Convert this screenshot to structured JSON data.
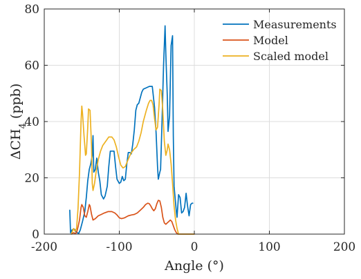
{
  "chart_data": {
    "type": "line",
    "title": "",
    "xlabel": "Angle (°)",
    "ylabel": "ΔCH4 (ppb)",
    "ylabel_base": "ΔCH",
    "ylabel_sub": "4",
    "ylabel_unit": " (ppb)",
    "xlim": [
      -200,
      200
    ],
    "ylim": [
      0,
      80
    ],
    "xticks": [
      -200,
      -100,
      0,
      100,
      200
    ],
    "yticks": [
      0,
      20,
      40,
      60,
      80
    ],
    "xtick_labels": [
      "-200",
      "-100",
      "0",
      "100",
      "200"
    ],
    "ytick_labels": [
      "0",
      "20",
      "40",
      "60",
      "80"
    ],
    "grid": true,
    "legend_position": "top-right",
    "series": [
      {
        "name": "Measurements",
        "color": "#0072BD",
        "points": [
          [
            -166,
            8.5
          ],
          [
            -165,
            0.5
          ],
          [
            -163,
            1.5
          ],
          [
            -160,
            1.8
          ],
          [
            -157,
            0.6
          ],
          [
            -154,
            0.3
          ],
          [
            -152,
            1.5
          ],
          [
            -149,
            4.5
          ],
          [
            -146,
            8
          ],
          [
            -144,
            13
          ],
          [
            -142,
            19
          ],
          [
            -140,
            23
          ],
          [
            -138,
            25
          ],
          [
            -136,
            28
          ],
          [
            -135,
            35
          ],
          [
            -134,
            22
          ],
          [
            -132,
            23
          ],
          [
            -130,
            27
          ],
          [
            -128,
            22
          ],
          [
            -126,
            19
          ],
          [
            -124,
            14
          ],
          [
            -121,
            12.5
          ],
          [
            -119,
            13.5
          ],
          [
            -116,
            17
          ],
          [
            -114,
            24
          ],
          [
            -112,
            29.5
          ],
          [
            -109,
            29.5
          ],
          [
            -107,
            29.5
          ],
          [
            -105,
            24
          ],
          [
            -103,
            19.5
          ],
          [
            -100,
            18
          ],
          [
            -98,
            18.5
          ],
          [
            -96,
            20.5
          ],
          [
            -94,
            19
          ],
          [
            -92,
            19.5
          ],
          [
            -90,
            25
          ],
          [
            -88,
            29
          ],
          [
            -86,
            29
          ],
          [
            -84,
            28.5
          ],
          [
            -82,
            32
          ],
          [
            -80,
            37
          ],
          [
            -78,
            44
          ],
          [
            -76,
            46
          ],
          [
            -74,
            46.5
          ],
          [
            -72,
            48.5
          ],
          [
            -70,
            50.5
          ],
          [
            -68,
            51.5
          ],
          [
            -64,
            52
          ],
          [
            -60,
            52.5
          ],
          [
            -56,
            52.5
          ],
          [
            -53,
            45
          ],
          [
            -51,
            36
          ],
          [
            -49,
            24
          ],
          [
            -48,
            19.5
          ],
          [
            -46,
            22
          ],
          [
            -45,
            23
          ],
          [
            -43,
            40
          ],
          [
            -41,
            60
          ],
          [
            -39,
            74
          ],
          [
            -38,
            64
          ],
          [
            -36,
            49
          ],
          [
            -35,
            36.5
          ],
          [
            -33,
            42
          ],
          [
            -31,
            67
          ],
          [
            -29,
            70.5
          ],
          [
            -28,
            35
          ],
          [
            -27,
            17
          ],
          [
            -26,
            14
          ],
          [
            -25,
            11
          ],
          [
            -24,
            8
          ],
          [
            -23,
            6
          ],
          [
            -21,
            14
          ],
          [
            -19,
            13
          ],
          [
            -17,
            7.5
          ],
          [
            -15,
            8
          ],
          [
            -13,
            9.5
          ],
          [
            -11,
            14.5
          ],
          [
            -9,
            10
          ],
          [
            -7,
            6.5
          ],
          [
            -5,
            10.5
          ],
          [
            -3,
            11
          ],
          [
            -2,
            11
          ]
        ]
      },
      {
        "name": "Model",
        "color": "#D95319",
        "points": [
          [
            -164,
            0
          ],
          [
            -161,
            0.5
          ],
          [
            -159,
            0.3
          ],
          [
            -157,
            0.5
          ],
          [
            -155,
            2.5
          ],
          [
            -153,
            5
          ],
          [
            -151,
            9.5
          ],
          [
            -150,
            10.5
          ],
          [
            -148,
            9.5
          ],
          [
            -146,
            6.5
          ],
          [
            -144,
            6
          ],
          [
            -142,
            8
          ],
          [
            -140,
            10.5
          ],
          [
            -139,
            10
          ],
          [
            -137,
            7
          ],
          [
            -135,
            5
          ],
          [
            -132,
            5.5
          ],
          [
            -128,
            6.5
          ],
          [
            -124,
            7
          ],
          [
            -120,
            7.5
          ],
          [
            -115,
            8
          ],
          [
            -110,
            8
          ],
          [
            -106,
            7.5
          ],
          [
            -103,
            6.8
          ],
          [
            -100,
            5.8
          ],
          [
            -97,
            5.5
          ],
          [
            -93,
            5.8
          ],
          [
            -88,
            6.5
          ],
          [
            -84,
            6.8
          ],
          [
            -80,
            7
          ],
          [
            -76,
            7.5
          ],
          [
            -72,
            8.5
          ],
          [
            -68,
            9.5
          ],
          [
            -65,
            10.5
          ],
          [
            -62,
            11
          ],
          [
            -60,
            10.8
          ],
          [
            -58,
            10
          ],
          [
            -56,
            9
          ],
          [
            -54,
            8.3
          ],
          [
            -52,
            9
          ],
          [
            -50,
            10.8
          ],
          [
            -48,
            12
          ],
          [
            -46,
            11.8
          ],
          [
            -44,
            9.5
          ],
          [
            -42,
            6
          ],
          [
            -40,
            4
          ],
          [
            -38,
            3.5
          ],
          [
            -36,
            4
          ],
          [
            -34,
            4.5
          ],
          [
            -32,
            5
          ],
          [
            -30,
            4.5
          ],
          [
            -28,
            3
          ],
          [
            -26,
            1.5
          ],
          [
            -24,
            0.5
          ],
          [
            -22,
            0
          ],
          [
            -15,
            0
          ],
          [
            -5,
            0
          ],
          [
            0,
            0
          ]
        ]
      },
      {
        "name": "Scaled model",
        "color": "#EDB120",
        "points": [
          [
            -164,
            0
          ],
          [
            -161,
            2
          ],
          [
            -159,
            1
          ],
          [
            -157,
            2
          ],
          [
            -155,
            9
          ],
          [
            -153,
            22
          ],
          [
            -151,
            40
          ],
          [
            -150,
            45.5
          ],
          [
            -149,
            43
          ],
          [
            -147,
            35
          ],
          [
            -145,
            28
          ],
          [
            -144,
            28.5
          ],
          [
            -142,
            38
          ],
          [
            -141,
            44.5
          ],
          [
            -139,
            44
          ],
          [
            -137,
            31
          ],
          [
            -136,
            18
          ],
          [
            -135,
            15.5
          ],
          [
            -133,
            18
          ],
          [
            -131,
            22
          ],
          [
            -128,
            26.5
          ],
          [
            -125,
            29.5
          ],
          [
            -122,
            31.5
          ],
          [
            -118,
            33
          ],
          [
            -114,
            34.5
          ],
          [
            -110,
            34.5
          ],
          [
            -107,
            33.5
          ],
          [
            -104,
            31
          ],
          [
            -101,
            27.5
          ],
          [
            -98,
            24.5
          ],
          [
            -95,
            23.5
          ],
          [
            -92,
            24
          ],
          [
            -89,
            26
          ],
          [
            -85,
            28.5
          ],
          [
            -81,
            30
          ],
          [
            -77,
            31
          ],
          [
            -74,
            33
          ],
          [
            -71,
            36
          ],
          [
            -68,
            40
          ],
          [
            -64,
            44
          ],
          [
            -61,
            46.5
          ],
          [
            -59,
            47.5
          ],
          [
            -57,
            47.5
          ],
          [
            -55,
            46
          ],
          [
            -53,
            41
          ],
          [
            -51,
            37
          ],
          [
            -49,
            38
          ],
          [
            -47,
            46
          ],
          [
            -46,
            51.5
          ],
          [
            -44,
            51
          ],
          [
            -42,
            44
          ],
          [
            -40,
            33
          ],
          [
            -38,
            28
          ],
          [
            -36,
            30
          ],
          [
            -35,
            32
          ],
          [
            -33,
            30
          ],
          [
            -31,
            25
          ],
          [
            -29,
            18
          ],
          [
            -27,
            10
          ],
          [
            -25,
            5
          ],
          [
            -23,
            2
          ],
          [
            -21,
            0
          ],
          [
            -15,
            0
          ],
          [
            -5,
            0
          ],
          [
            0,
            0
          ]
        ]
      }
    ]
  }
}
